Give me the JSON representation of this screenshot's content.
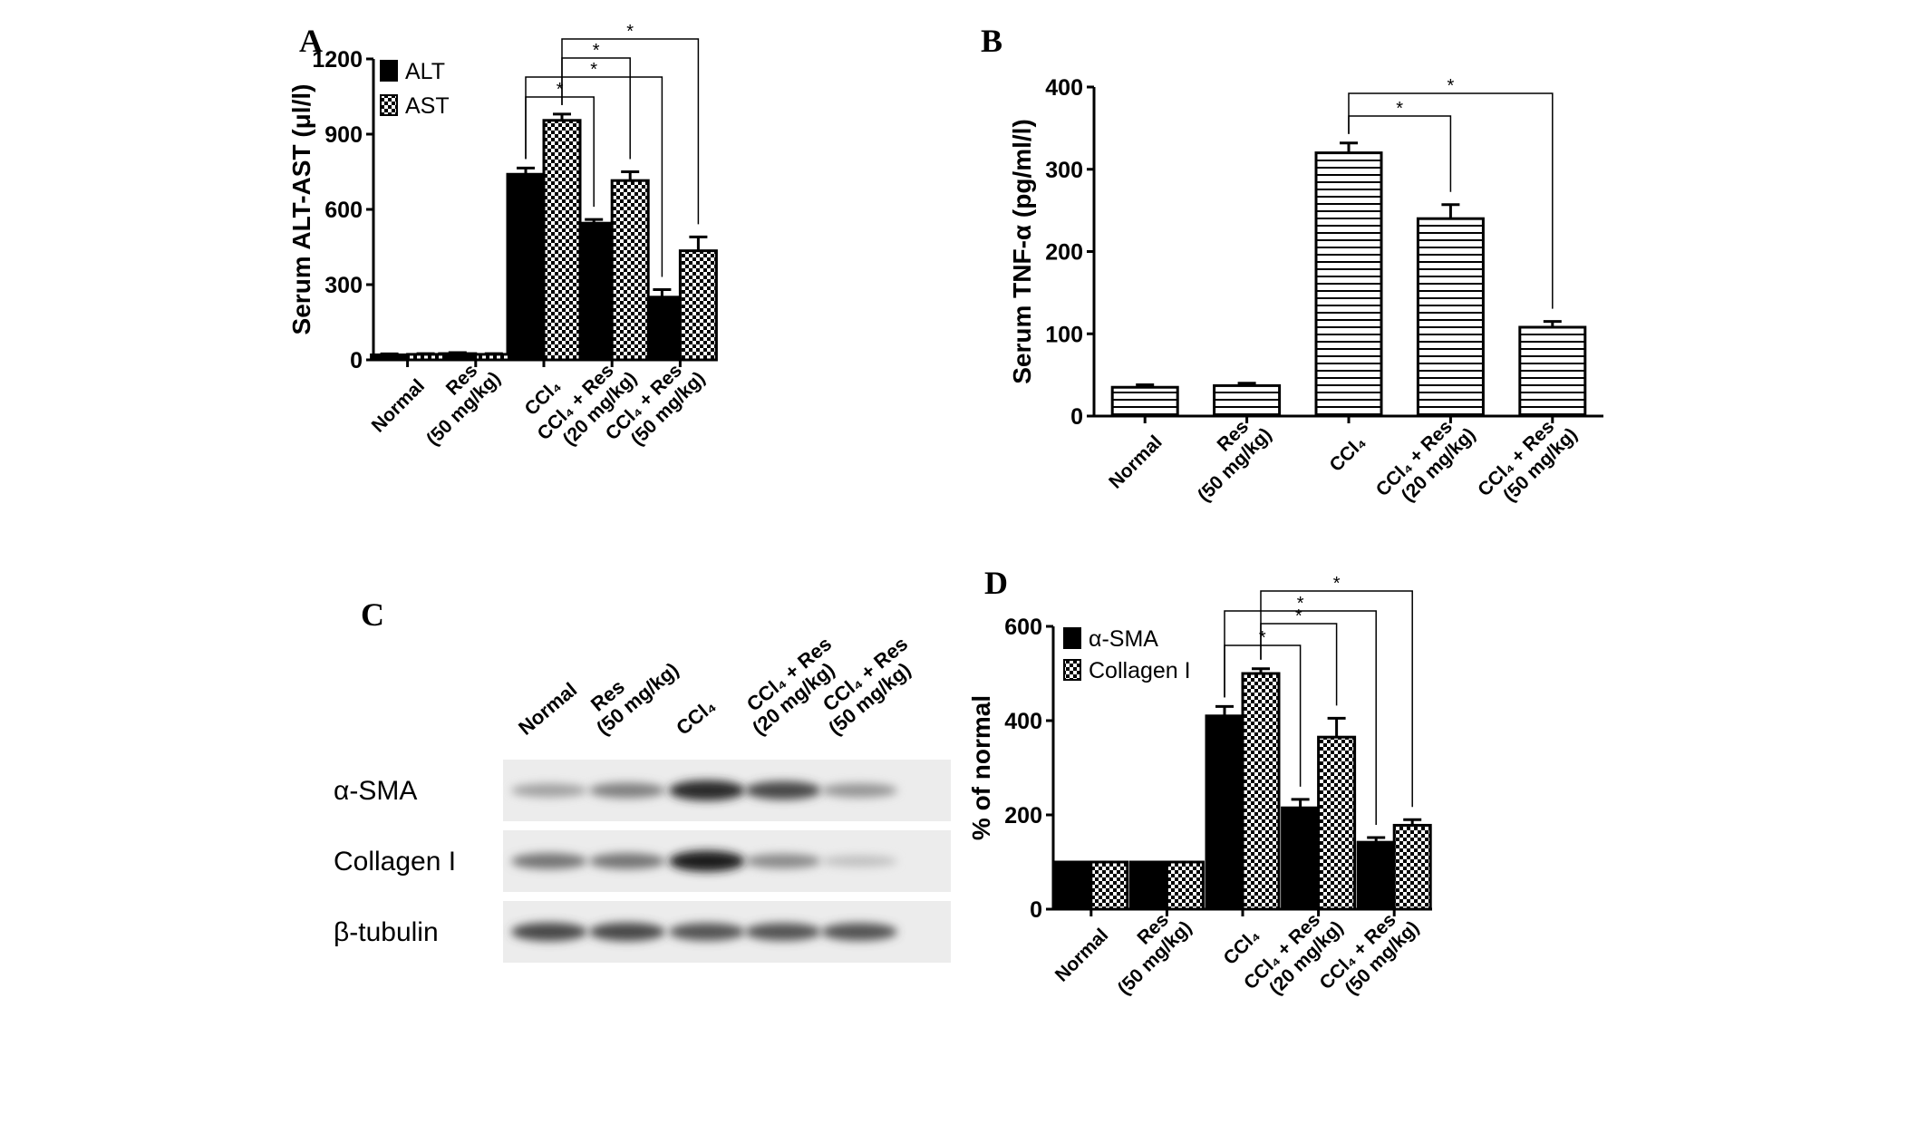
{
  "panels": [
    "A",
    "B",
    "C",
    "D"
  ],
  "chart_data": [
    {
      "panel": "A",
      "type": "bar",
      "ylabel": "Serum ALT-AST (μl/l)",
      "ylim": [
        0,
        1200
      ],
      "yticks": [
        0,
        300,
        600,
        900,
        1200
      ],
      "categories": [
        [
          "Normal"
        ],
        [
          "Res",
          "(50 mg/kg)"
        ],
        [
          "CCl₄"
        ],
        [
          "CCl₄ + Res",
          "(20 mg/kg)"
        ],
        [
          "CCl₄ + Res",
          "(50 mg/kg)"
        ]
      ],
      "legend": "top-left",
      "series": [
        {
          "name": "ALT",
          "fill": "solid-black",
          "values": [
            20,
            25,
            740,
            545,
            250
          ],
          "errors": [
            4,
            4,
            25,
            15,
            30
          ]
        },
        {
          "name": "AST",
          "fill": "checkerboard",
          "values": [
            22,
            22,
            955,
            715,
            435
          ],
          "errors": [
            3,
            3,
            25,
            35,
            55
          ]
        }
      ],
      "significance": [
        {
          "from": [
            2,
            0
          ],
          "to": [
            3,
            0
          ],
          "label": "*"
        },
        {
          "from": [
            2,
            0
          ],
          "to": [
            4,
            0
          ],
          "label": "*"
        },
        {
          "from": [
            2,
            1
          ],
          "to": [
            3,
            1
          ],
          "label": "*"
        },
        {
          "from": [
            2,
            1
          ],
          "to": [
            4,
            1
          ],
          "label": "*"
        }
      ]
    },
    {
      "panel": "B",
      "type": "bar",
      "ylabel": "Serum TNF-α (pg/ml/l)",
      "ylim": [
        0,
        400
      ],
      "yticks": [
        0,
        100,
        200,
        300,
        400
      ],
      "categories": [
        [
          "Normal"
        ],
        [
          "Res",
          "(50 mg/kg)"
        ],
        [
          "CCl₄"
        ],
        [
          "CCl₄ + Res",
          "(20 mg/kg)"
        ],
        [
          "CCl₄ + Res",
          "(50 mg/kg)"
        ]
      ],
      "series": [
        {
          "fill": "horizontal-stripes",
          "values": [
            35,
            37,
            320,
            240,
            108
          ],
          "errors": [
            3,
            3,
            12,
            17,
            7
          ]
        }
      ],
      "significance": [
        {
          "from": [
            2,
            0
          ],
          "to": [
            3,
            0
          ],
          "label": "*"
        },
        {
          "from": [
            2,
            0
          ],
          "to": [
            4,
            0
          ],
          "label": "*"
        }
      ]
    },
    {
      "panel": "D",
      "type": "bar",
      "ylabel": "% of normal",
      "ylim": [
        0,
        600
      ],
      "yticks": [
        0,
        200,
        400,
        600
      ],
      "categories": [
        [
          "Normal"
        ],
        [
          "Res",
          "(50 mg/kg)"
        ],
        [
          "CCl₄"
        ],
        [
          "CCl₄ + Res",
          "(20 mg/kg)"
        ],
        [
          "CCl₄ + Res",
          "(50 mg/kg)"
        ]
      ],
      "legend": "top-left",
      "series": [
        {
          "name": "α-SMA",
          "fill": "solid-black",
          "values": [
            100,
            100,
            410,
            215,
            142
          ],
          "errors": [
            0,
            0,
            20,
            18,
            10
          ]
        },
        {
          "name": "Collagen I",
          "fill": "checkerboard",
          "values": [
            100,
            100,
            500,
            365,
            178
          ],
          "errors": [
            0,
            0,
            10,
            40,
            12
          ]
        }
      ],
      "significance": [
        {
          "from": [
            2,
            0
          ],
          "to": [
            3,
            0
          ],
          "label": "*"
        },
        {
          "from": [
            2,
            0
          ],
          "to": [
            4,
            0
          ],
          "label": "*"
        },
        {
          "from": [
            2,
            1
          ],
          "to": [
            3,
            1
          ],
          "label": "*"
        },
        {
          "from": [
            2,
            1
          ],
          "to": [
            4,
            1
          ],
          "label": "*"
        }
      ]
    }
  ],
  "blot": {
    "panel": "C",
    "lanes": [
      [
        "Normal"
      ],
      [
        "Res",
        "(50 mg/kg)"
      ],
      [
        "CCl₄"
      ],
      [
        "CCl₄ + Res",
        "(20 mg/kg)"
      ],
      [
        "CCl₄ + Res",
        "(50 mg/kg)"
      ]
    ],
    "rows": [
      {
        "label": "α-SMA",
        "band_intensity": [
          0.35,
          0.5,
          0.9,
          0.75,
          0.4
        ]
      },
      {
        "label": "Collagen I",
        "band_intensity": [
          0.55,
          0.55,
          0.95,
          0.45,
          0.2
        ]
      },
      {
        "label": "β-tubulin",
        "band_intensity": [
          0.75,
          0.75,
          0.7,
          0.7,
          0.7
        ]
      }
    ]
  }
}
